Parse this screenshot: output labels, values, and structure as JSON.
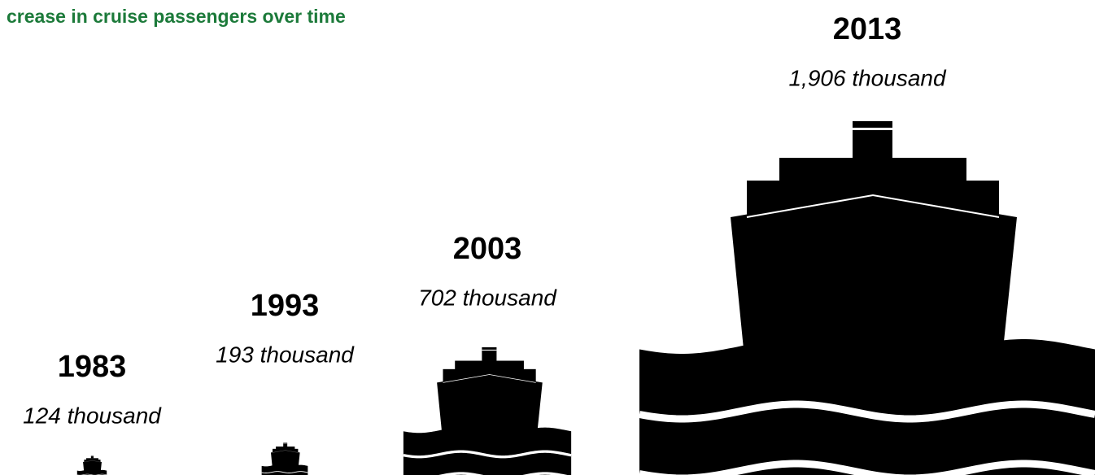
{
  "chart_data": {
    "type": "pictogram",
    "title": "crease in cruise passengers over time",
    "categories": [
      "1983",
      "1993",
      "2003",
      "2013"
    ],
    "values": [
      124,
      193,
      702,
      1906
    ],
    "value_labels": [
      "124 thousand",
      "193 thousand",
      "702 thousand",
      "1,906 thousand"
    ],
    "color": "#000000"
  }
}
